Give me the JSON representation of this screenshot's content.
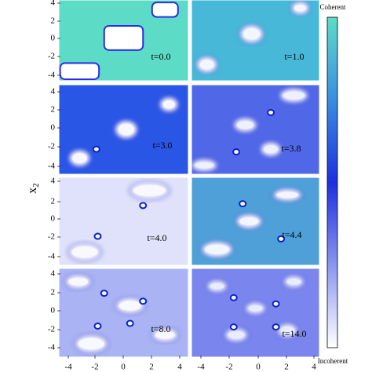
{
  "figure": {
    "y_label": {
      "main": "x",
      "sub": "2"
    },
    "x_ticks": [
      "-4",
      "-2",
      "0",
      "2",
      "4"
    ],
    "y_ticks": [
      "4",
      "2",
      "0",
      "-2",
      "-4"
    ],
    "panels": [
      {
        "label": "t=0.0"
      },
      {
        "label": "t=1.0"
      },
      {
        "label": "t=3.0"
      },
      {
        "label": "t=3.8"
      },
      {
        "label": "t=4.0"
      },
      {
        "label": "t=4.4"
      },
      {
        "label": "t=8.0"
      },
      {
        "label": "t=14.0"
      }
    ],
    "colorbar": {
      "top": "Coherent",
      "bottom": "Incoherent"
    }
  }
}
